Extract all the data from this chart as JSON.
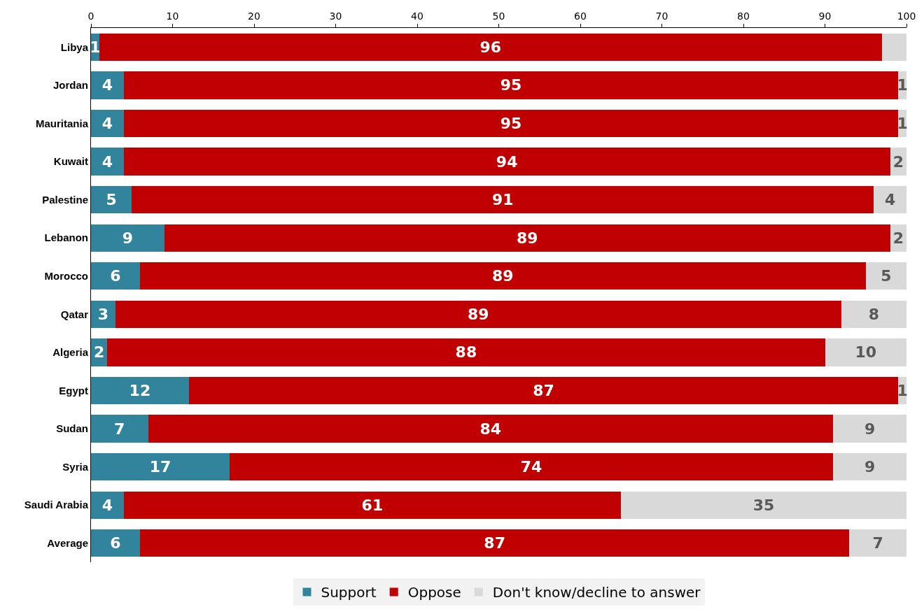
{
  "chart_data": {
    "type": "bar",
    "orientation": "horizontal",
    "stacked": true,
    "categories": [
      "Libya",
      "Jordan",
      "Mauritania",
      "Kuwait",
      "Palestine",
      "Lebanon",
      "Morocco",
      "Qatar",
      "Algeria",
      "Egypt",
      "Sudan",
      "Syria",
      "Saudi Arabia",
      "Average"
    ],
    "series": [
      {
        "name": "Support",
        "color": "#31849b",
        "values": [
          1,
          4,
          4,
          4,
          5,
          9,
          6,
          3,
          2,
          12,
          7,
          17,
          4,
          6
        ],
        "value_labels": [
          "1",
          "4",
          "4",
          "4",
          "5",
          "9",
          "6",
          "3",
          "2",
          "12",
          "7",
          "17",
          "4",
          "6"
        ]
      },
      {
        "name": "Oppose",
        "color": "#c00000",
        "values": [
          96,
          95,
          95,
          94,
          91,
          89,
          89,
          89,
          88,
          87,
          84,
          74,
          61,
          87
        ],
        "value_labels": [
          "96",
          "95",
          "95",
          "94",
          "91",
          "89",
          "89",
          "89",
          "88",
          "87",
          "84",
          "74",
          "61",
          "87"
        ]
      },
      {
        "name": "Don't know/decline to answer",
        "color": "#d9d9d9",
        "values": [
          3,
          1,
          1,
          2,
          4,
          2,
          5,
          8,
          10,
          1,
          9,
          9,
          35,
          7
        ],
        "value_labels": [
          null,
          "1",
          "1",
          "2",
          "4",
          "2",
          "5",
          "8",
          "10",
          "1",
          "9",
          "9",
          "35",
          "7"
        ]
      }
    ],
    "xlim": [
      0,
      100
    ],
    "xticks": [
      0,
      10,
      20,
      30,
      40,
      50,
      60,
      70,
      80,
      90,
      100
    ],
    "grid": false,
    "legend": "bottom"
  }
}
